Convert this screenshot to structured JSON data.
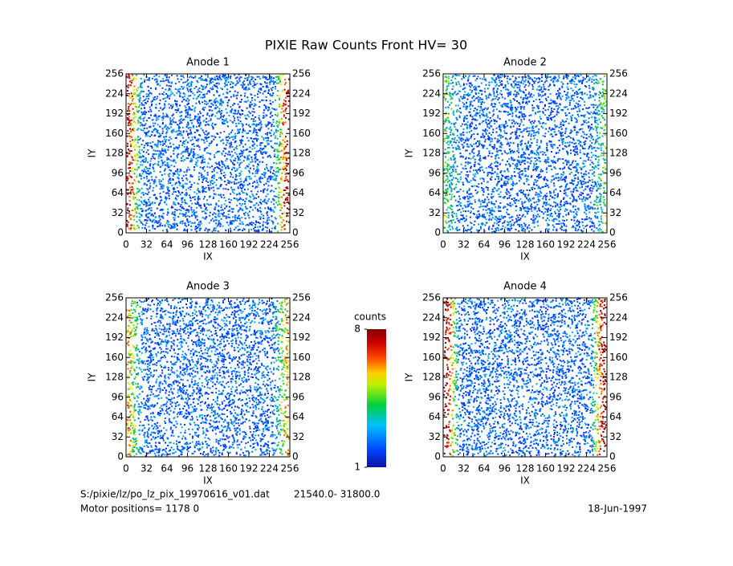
{
  "title": "PIXIE Raw Counts Front HV= 30",
  "chart_data": [
    {
      "type": "heatmap",
      "title": "Anode 1",
      "xlabel": "IX",
      "ylabel": "IY",
      "xlim": [
        0,
        256
      ],
      "ylim": [
        0,
        256
      ],
      "xticks": [
        0,
        32,
        64,
        96,
        128,
        160,
        192,
        224,
        256
      ],
      "yticks": [
        0,
        32,
        64,
        96,
        128,
        160,
        192,
        224,
        256
      ]
    },
    {
      "type": "heatmap",
      "title": "Anode 2",
      "xlabel": "IX",
      "ylabel": "IY",
      "xlim": [
        0,
        256
      ],
      "ylim": [
        0,
        256
      ],
      "xticks": [
        0,
        32,
        64,
        96,
        128,
        160,
        192,
        224,
        256
      ],
      "yticks": [
        0,
        32,
        64,
        96,
        128,
        160,
        192,
        224,
        256
      ]
    },
    {
      "type": "heatmap",
      "title": "Anode 3",
      "xlabel": "IX",
      "ylabel": "IY",
      "xlim": [
        0,
        256
      ],
      "ylim": [
        0,
        256
      ],
      "xticks": [
        0,
        32,
        64,
        96,
        128,
        160,
        192,
        224,
        256
      ],
      "yticks": [
        0,
        32,
        64,
        96,
        128,
        160,
        192,
        224,
        256
      ]
    },
    {
      "type": "heatmap",
      "title": "Anode 4",
      "xlabel": "IX",
      "ylabel": "IY",
      "xlim": [
        0,
        256
      ],
      "ylim": [
        0,
        256
      ],
      "xticks": [
        0,
        32,
        64,
        96,
        128,
        160,
        192,
        224,
        256
      ],
      "yticks": [
        0,
        32,
        64,
        96,
        128,
        160,
        192,
        224,
        256
      ]
    }
  ],
  "colorbar": {
    "label": "counts",
    "lim": [
      1,
      8
    ],
    "ticks": [
      1,
      8
    ]
  },
  "footer": {
    "file": "S:/pixie/lz/po_lz_pix_19970616_v01.dat",
    "range": "21540.0- 31800.0",
    "motor": "Motor positions= 1178  0",
    "date": "18-Jun-1997"
  }
}
